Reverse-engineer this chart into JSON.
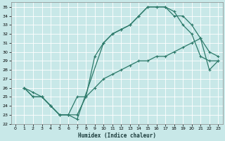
{
  "xlabel": "Humidex (Indice chaleur)",
  "bg_color": "#c8e8e8",
  "line_color": "#2d7a6a",
  "grid_color": "#b0d4d4",
  "xlim": [
    -0.5,
    23.5
  ],
  "ylim": [
    22,
    35.5
  ],
  "yticks": [
    22,
    23,
    24,
    25,
    26,
    27,
    28,
    29,
    30,
    31,
    32,
    33,
    34,
    35
  ],
  "xticks": [
    0,
    1,
    2,
    3,
    4,
    5,
    6,
    7,
    8,
    9,
    10,
    11,
    12,
    13,
    14,
    15,
    16,
    17,
    18,
    19,
    20,
    21,
    22,
    23
  ],
  "curve1_x": [
    1,
    2,
    3,
    4,
    5,
    6,
    7,
    10,
    11,
    12,
    13,
    14,
    15,
    16,
    17,
    18,
    19,
    20,
    21,
    22,
    23
  ],
  "curve1_y": [
    26,
    25,
    25,
    24,
    23,
    23,
    22.5,
    31,
    32,
    32.5,
    33,
    34,
    35,
    35,
    35,
    34,
    34,
    33,
    31.5,
    30,
    29.5
  ],
  "curve2_x": [
    1,
    2,
    3,
    4,
    5,
    6,
    7,
    8,
    9,
    10,
    11,
    12,
    13,
    14,
    15,
    16,
    17,
    18,
    19,
    20,
    21,
    22,
    23
  ],
  "curve2_y": [
    26,
    25,
    25,
    24,
    23,
    23,
    25,
    25,
    29.5,
    31,
    32,
    32.5,
    33,
    34,
    35,
    35,
    35,
    34.5,
    33,
    32,
    29.5,
    29,
    29
  ],
  "curve3_x": [
    1,
    2,
    3,
    4,
    5,
    6,
    7,
    8,
    9,
    10,
    11,
    12,
    13,
    14,
    15,
    16,
    17,
    18,
    19,
    20,
    21,
    22,
    23
  ],
  "curve3_y": [
    26,
    25.5,
    25,
    24,
    23,
    23,
    23,
    25,
    26,
    27,
    27.5,
    28,
    28.5,
    29,
    29,
    29.5,
    29.5,
    30,
    30.5,
    31,
    31.5,
    28,
    29
  ]
}
